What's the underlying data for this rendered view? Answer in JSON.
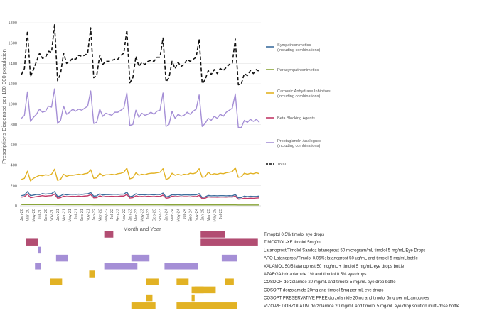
{
  "chart_data": [
    {
      "type": "line",
      "xlabel": "Month and Year",
      "ylabel": "Prescriptions Dispensed per 100 000 population",
      "ylim": [
        0,
        1800
      ],
      "yticks": [
        0,
        200,
        400,
        600,
        800,
        1000,
        1200,
        1400,
        1600,
        1800
      ],
      "x_start": "Jan-20",
      "x_tick_labels": [
        "Jan-20",
        "Mar-20",
        "May-20",
        "Jul-20",
        "Sep-20",
        "Nov-20",
        "Jan-21",
        "Mar-21",
        "May-21",
        "Jul-21",
        "Sep-21",
        "Nov-21",
        "Jan-22",
        "Mar-22",
        "May-22",
        "Jul-22",
        "Sep-22",
        "Nov-22",
        "Jan-23",
        "Mar-23",
        "May-23",
        "Jul-23",
        "Sep-23",
        "Nov-23",
        "Jan-24",
        "Mar-24",
        "May-24",
        "Jul-24",
        "Sep-24",
        "Nov-24",
        "Jan-25",
        "Mar-25",
        "May-25",
        "Jul-25"
      ],
      "grid": "horizontal",
      "legend_position": "right",
      "series": [
        {
          "name": "Sympathomimetics (including combinations)",
          "color": "#3e6e9e",
          "dash": false,
          "values": [
            100,
            105,
            140,
            100,
            105,
            112,
            110,
            120,
            115,
            118,
            120,
            140,
            90,
            98,
            115,
            108,
            112,
            114,
            112,
            115,
            112,
            116,
            118,
            130,
            95,
            98,
            118,
            106,
            110,
            110,
            112,
            114,
            112,
            115,
            115,
            135,
            90,
            96,
            118,
            108,
            110,
            108,
            112,
            110,
            108,
            112,
            110,
            125,
            88,
            94,
            110,
            106,
            110,
            104,
            108,
            108,
            106,
            108,
            108,
            120,
            82,
            88,
            102,
            98,
            100,
            98,
            100,
            100,
            98,
            100,
            98,
            112,
            78,
            82,
            95,
            90,
            94,
            92,
            92,
            96
          ]
        },
        {
          "name": "Parasympathomimetics",
          "color": "#8aa63a",
          "dash": false,
          "values": [
            12,
            12,
            12,
            12,
            12,
            12,
            12,
            12,
            12,
            12,
            12,
            12,
            11,
            11,
            11,
            11,
            11,
            11,
            11,
            11,
            11,
            11,
            11,
            11,
            10,
            10,
            10,
            10,
            10,
            10,
            10,
            10,
            10,
            10,
            10,
            10,
            10,
            10,
            10,
            10,
            10,
            10,
            10,
            10,
            10,
            10,
            10,
            10,
            9,
            9,
            9,
            9,
            9,
            9,
            9,
            9,
            9,
            9,
            9,
            9,
            9,
            9,
            9,
            9,
            9,
            9,
            9,
            9,
            9,
            9,
            9,
            9,
            8,
            8,
            8,
            8,
            8,
            8,
            8,
            8
          ]
        },
        {
          "name": "Carbonic Anhydrase Inhibitors (including combinations)",
          "color": "#e2b224",
          "dash": false,
          "values": [
            260,
            270,
            340,
            245,
            270,
            285,
            300,
            295,
            305,
            300,
            310,
            360,
            250,
            260,
            310,
            290,
            300,
            300,
            305,
            310,
            305,
            315,
            320,
            355,
            270,
            275,
            320,
            295,
            305,
            305,
            310,
            305,
            315,
            320,
            330,
            370,
            265,
            275,
            325,
            300,
            310,
            305,
            315,
            320,
            320,
            325,
            330,
            365,
            260,
            270,
            320,
            300,
            310,
            300,
            310,
            305,
            320,
            315,
            325,
            365,
            280,
            285,
            330,
            305,
            315,
            310,
            320,
            315,
            325,
            330,
            335,
            375,
            280,
            285,
            320,
            310,
            320,
            315,
            325,
            315
          ]
        },
        {
          "name": "Beta Blocking Agents",
          "color": "#c23a68",
          "dash": false,
          "values": [
            85,
            90,
            115,
            80,
            85,
            90,
            95,
            100,
            95,
            98,
            100,
            115,
            75,
            80,
            95,
            90,
            92,
            94,
            92,
            95,
            92,
            96,
            98,
            110,
            78,
            80,
            98,
            88,
            92,
            92,
            94,
            92,
            92,
            96,
            96,
            112,
            76,
            80,
            98,
            90,
            92,
            90,
            94,
            92,
            90,
            94,
            92,
            105,
            75,
            78,
            95,
            90,
            92,
            88,
            90,
            90,
            88,
            92,
            90,
            102,
            70,
            75,
            88,
            85,
            86,
            84,
            86,
            86,
            85,
            88,
            86,
            96,
            65,
            68,
            75,
            72,
            75,
            74,
            76,
            78
          ]
        },
        {
          "name": "Prostaglandin Analogues (including combinations)",
          "color": "#a58fd6",
          "dash": false,
          "values": [
            860,
            890,
            1120,
            830,
            870,
            900,
            950,
            920,
            930,
            980,
            970,
            1150,
            810,
            840,
            980,
            900,
            920,
            950,
            930,
            950,
            940,
            960,
            980,
            1130,
            810,
            820,
            950,
            880,
            910,
            900,
            890,
            920,
            920,
            940,
            960,
            1110,
            790,
            800,
            940,
            870,
            910,
            890,
            900,
            920,
            900,
            930,
            940,
            1110,
            780,
            800,
            930,
            860,
            900,
            880,
            890,
            920,
            900,
            930,
            950,
            1090,
            780,
            810,
            860,
            840,
            880,
            860,
            900,
            880,
            920,
            940,
            960,
            1100,
            770,
            770,
            840,
            820,
            850,
            830,
            850,
            820
          ]
        },
        {
          "name": "Total",
          "color": "#111111",
          "dash": true,
          "values": [
            1290,
            1350,
            1720,
            1270,
            1340,
            1420,
            1500,
            1450,
            1460,
            1520,
            1510,
            1780,
            1230,
            1300,
            1500,
            1400,
            1420,
            1450,
            1440,
            1480,
            1470,
            1480,
            1500,
            1750,
            1260,
            1280,
            1480,
            1390,
            1420,
            1420,
            1430,
            1440,
            1440,
            1480,
            1500,
            1730,
            1210,
            1260,
            1470,
            1370,
            1410,
            1390,
            1420,
            1430,
            1420,
            1460,
            1460,
            1650,
            1220,
            1260,
            1420,
            1350,
            1410,
            1370,
            1390,
            1440,
            1420,
            1440,
            1460,
            1640,
            1200,
            1240,
            1330,
            1290,
            1340,
            1300,
            1350,
            1330,
            1360,
            1390,
            1400,
            1640,
            1190,
            1200,
            1300,
            1280,
            1330,
            1300,
            1340,
            1320
          ]
        }
      ]
    },
    {
      "type": "bar",
      "subtype": "availability-timeline",
      "time_axis": "shared with line chart (month index from Jan-20)",
      "rows": [
        {
          "label": "Timoptol 0.5% timolol eye drops",
          "color": "#b24d72",
          "periods": [
            [
              28,
              31
            ],
            [
              60,
              68
            ]
          ]
        },
        {
          "label": "TIMOPTOL-XE timolol 5mg/mL",
          "color": "#b24d72",
          "periods": [
            [
              2,
              6
            ],
            [
              60,
              72
            ],
            [
              72,
              79
            ]
          ]
        },
        {
          "label": "Latanoprost/Timolol Sandoz latanoprost 50 microgram/mL timolol 5 mg/mL Eye Drops",
          "color": "#a58fd6",
          "periods": [
            [
              6,
              7
            ]
          ]
        },
        {
          "label": "APO-Latanoprost/Timolol 0.05/5; latanoprost 50 ug/mL and timolol 5 mg/mL bottle",
          "color": "#a58fd6",
          "periods": [
            [
              12,
              16
            ],
            [
              37,
              43
            ],
            [
              67,
              72
            ]
          ]
        },
        {
          "label": "XALAMOL 50/5 latanoprost 50 mcg/mL + timolol 5 mg/mL eye drops bottle",
          "color": "#a58fd6",
          "periods": [
            [
              5,
              7
            ],
            [
              28,
              39
            ],
            [
              48,
              59
            ]
          ]
        },
        {
          "label": "AZARGA brinzolamide 1% and timolol 0.5% eye drops",
          "color": "#e2b224",
          "periods": [
            [
              23,
              25
            ]
          ]
        },
        {
          "label": "COSDOR dorzolamide 20 mg/mL and timolol 5 mg/mL eye drop bottle",
          "color": "#e2b224",
          "periods": [
            [
              10,
              14
            ],
            [
              42,
              46
            ],
            [
              52,
              56
            ],
            [
              68,
              71
            ]
          ]
        },
        {
          "label": "COSOPT dorzolamide 20mg and timolol 5mg per mL eye drops",
          "color": "#e2b224",
          "periods": [
            [
              57,
              61
            ],
            [
              58,
              65
            ]
          ]
        },
        {
          "label": "COSOPT PRESERVATIVE FREE dorzolamide 20mg and timolol 5mg per mL ampoules",
          "color": "#e2b224",
          "periods": [
            [
              42,
              44
            ],
            [
              57,
              58
            ]
          ]
        },
        {
          "label": "VIZO-PF DORZOLATIM dorzolamide 20 mg/mL and timolol 5 mg/mL eye drop solution multi-dose bottle",
          "color": "#e2b224",
          "periods": [
            [
              37,
              45
            ],
            [
              52,
              72
            ]
          ]
        }
      ]
    }
  ]
}
